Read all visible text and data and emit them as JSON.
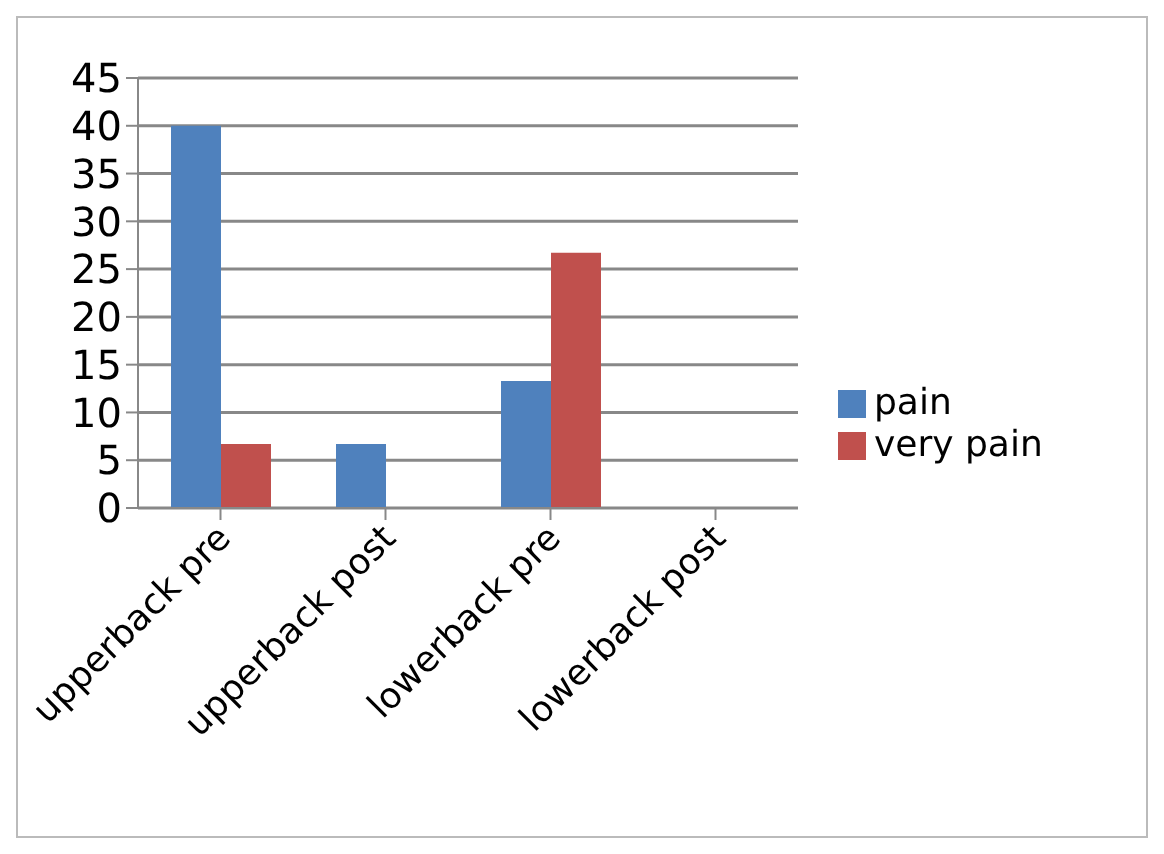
{
  "chart_data": {
    "type": "bar",
    "categories": [
      "upperback pre",
      "upperback post",
      "lowerback pre",
      "lowerback post"
    ],
    "series": [
      {
        "name": "pain",
        "color": "#4f81bd",
        "values": [
          40,
          6.7,
          13.3,
          0
        ]
      },
      {
        "name": "very pain",
        "color": "#c0504d",
        "values": [
          6.7,
          0,
          26.7,
          0
        ]
      }
    ],
    "ylim": [
      0,
      45
    ],
    "yticks": [
      0,
      5,
      10,
      15,
      20,
      25,
      30,
      35,
      40,
      45
    ],
    "grid": "y",
    "legend": "right"
  }
}
